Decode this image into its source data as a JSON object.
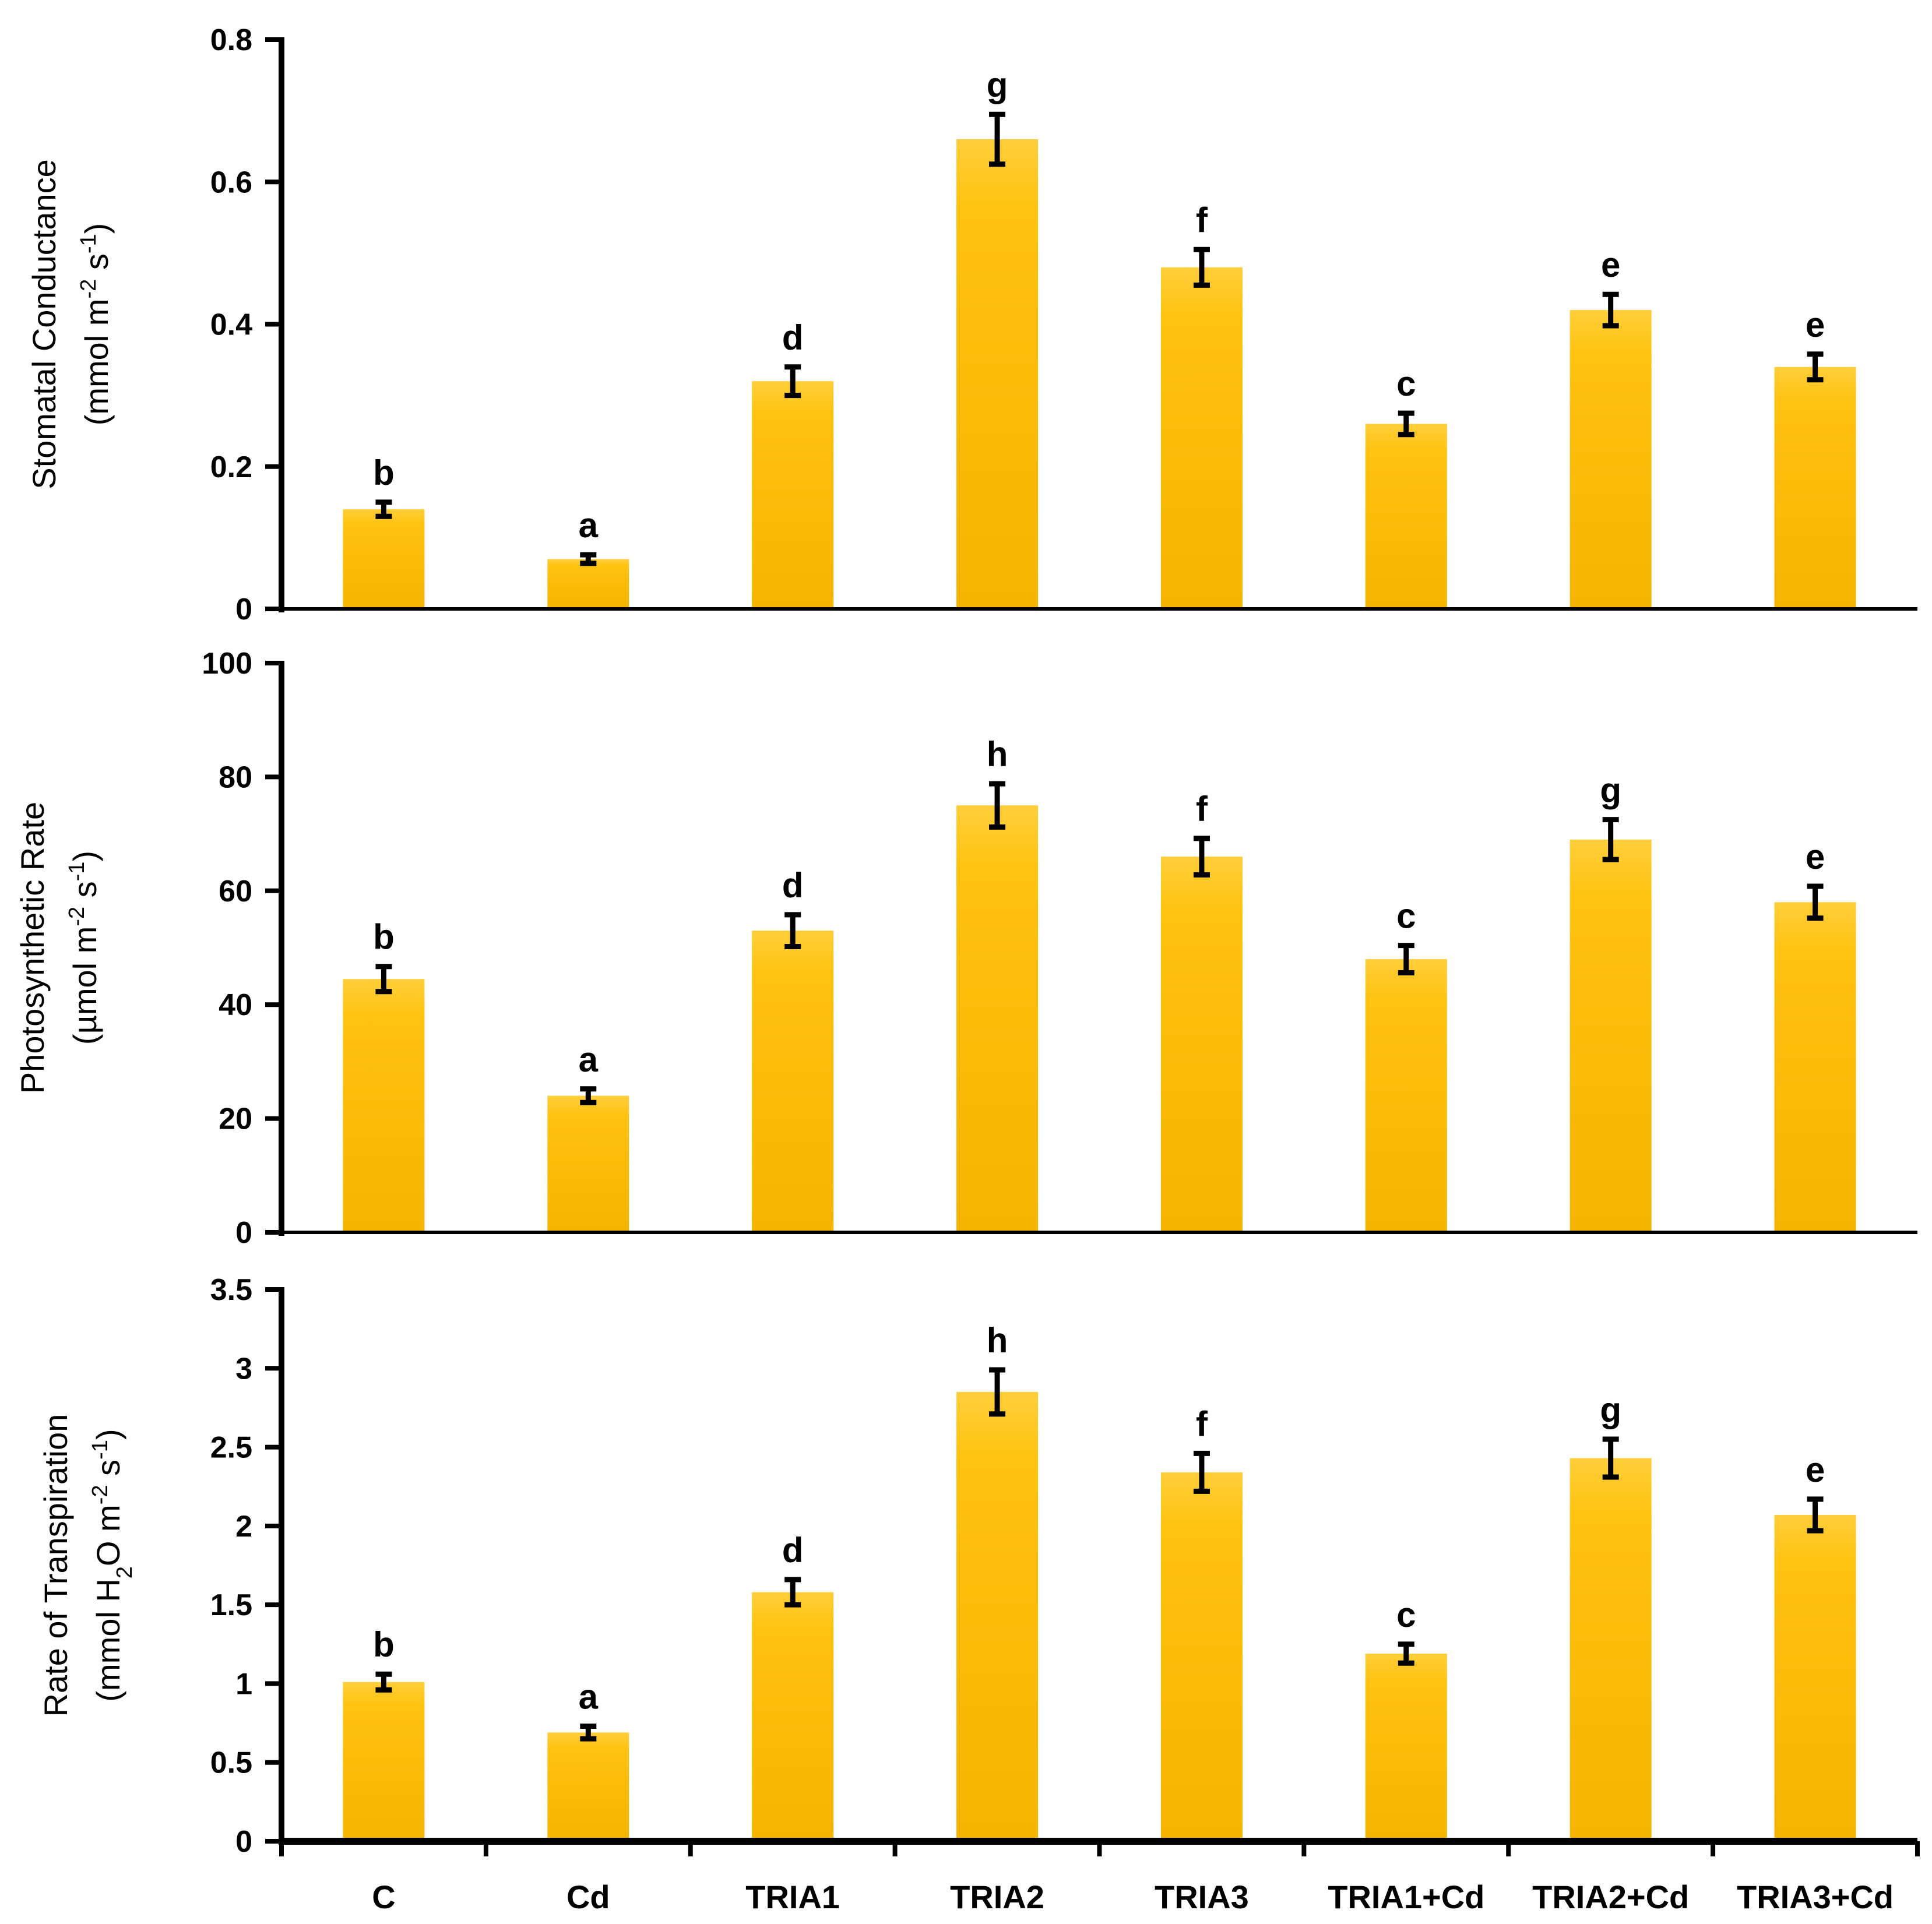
{
  "chart_data": [
    {
      "type": "bar",
      "title": "",
      "ylabel_line1": "Stomatal Conductance",
      "ylabel_line2_parts": [
        "(mmol m",
        "-2",
        " s",
        "-1",
        ")"
      ],
      "ylim": [
        0,
        0.8
      ],
      "yticks": [
        0,
        0.2,
        0.4,
        0.6,
        0.8
      ],
      "ytick_labels": [
        "0",
        "0.2",
        "0.4",
        "0.6",
        "0.8"
      ],
      "categories": [
        "C",
        "Cd",
        "TRIA1",
        "TRIA2",
        "TRIA3",
        "TRIA1+Cd",
        "TRIA2+Cd",
        "TRIA3+Cd"
      ],
      "values": [
        0.14,
        0.07,
        0.32,
        0.66,
        0.48,
        0.26,
        0.42,
        0.34
      ],
      "errors": [
        0.01,
        0.006,
        0.02,
        0.035,
        0.025,
        0.015,
        0.022,
        0.018
      ],
      "sig_letters": [
        "b",
        "a",
        "d",
        "g",
        "f",
        "c",
        "e",
        "e"
      ]
    },
    {
      "type": "bar",
      "title": "",
      "ylabel_line1": "Photosynthetic Rate",
      "ylabel_line2_parts": [
        "(µmol m",
        "-2",
        " s",
        "-1",
        ")"
      ],
      "ylim": [
        0,
        100
      ],
      "yticks": [
        0,
        20,
        40,
        60,
        80,
        100
      ],
      "ytick_labels": [
        "0",
        "20",
        "40",
        "60",
        "80",
        "100"
      ],
      "categories": [
        "C",
        "Cd",
        "TRIA1",
        "TRIA2",
        "TRIA3",
        "TRIA1+Cd",
        "TRIA2+Cd",
        "TRIA3+Cd"
      ],
      "values": [
        44.5,
        24,
        53,
        75,
        66,
        48,
        69,
        58
      ],
      "errors": [
        2.2,
        1.2,
        2.8,
        3.8,
        3.2,
        2.4,
        3.5,
        2.8
      ],
      "sig_letters": [
        "b",
        "a",
        "d",
        "h",
        "f",
        "c",
        "g",
        "e"
      ]
    },
    {
      "type": "bar",
      "title": "",
      "ylabel_line1": "Rate of Transpiration",
      "ylabel_line2_parts": [
        "(mmol H",
        "2",
        "O m",
        "-2",
        " s",
        "-1",
        ")"
      ],
      "ylabel_line2_kinds": [
        "n",
        "sub",
        "n",
        "sup",
        "n",
        "sup",
        "n"
      ],
      "ylim": [
        0,
        3.5
      ],
      "yticks": [
        0,
        0.5,
        1,
        1.5,
        2,
        2.5,
        3,
        3.5
      ],
      "ytick_labels": [
        "0",
        "0.5",
        "1",
        "1.5",
        "2",
        "2.5",
        "3",
        "3.5"
      ],
      "categories": [
        "C",
        "Cd",
        "TRIA1",
        "TRIA2",
        "TRIA3",
        "TRIA1+Cd",
        "TRIA2+Cd",
        "TRIA3+Cd"
      ],
      "xtick_labels": [
        "C",
        "Cd",
        "TRIA1",
        "TRIA2",
        "TRIA3",
        "TRIA1+Cd",
        "TRIA2+Cd",
        "TRIA3+Cd"
      ],
      "values": [
        1.01,
        0.69,
        1.58,
        2.85,
        2.34,
        1.19,
        2.43,
        2.07
      ],
      "errors": [
        0.05,
        0.04,
        0.08,
        0.14,
        0.12,
        0.06,
        0.12,
        0.1
      ],
      "sig_letters": [
        "b",
        "a",
        "d",
        "h",
        "f",
        "c",
        "g",
        "e"
      ]
    }
  ],
  "colors": {
    "bar_top": "#FFCE3A",
    "bar_mid": "#FFC20E",
    "bar_bottom": "#F5B400",
    "axis": "#000000",
    "error_bar": "#000000"
  }
}
